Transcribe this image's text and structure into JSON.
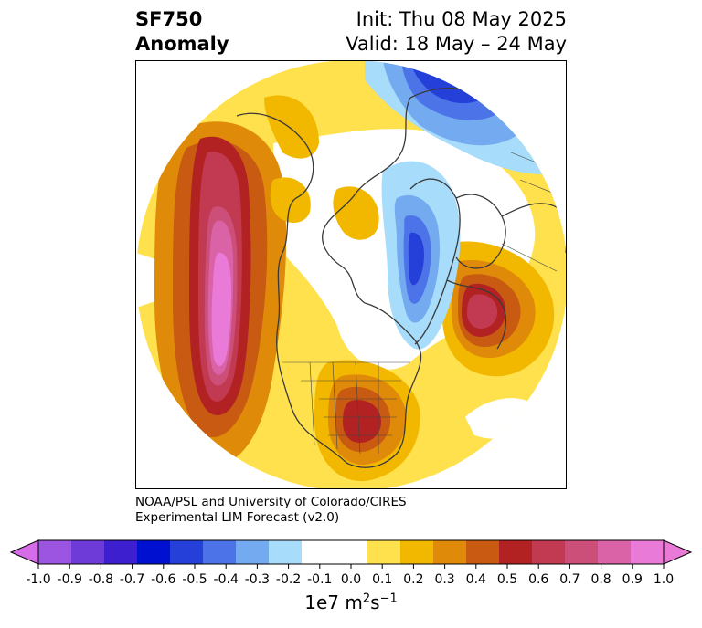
{
  "header": {
    "title_line1": "SF750",
    "title_line2": "Anomaly",
    "init_text": "Init: Thu 08 May 2025",
    "valid_text": "Valid: 18 May – 24 May"
  },
  "credit": {
    "line1": "NOAA/PSL and University of Colorado/CIRES",
    "line2": "Experimental LIM Forecast (v2.0)"
  },
  "colorbar": {
    "ticks": [
      "-1.0",
      "-0.9",
      "-0.8",
      "-0.7",
      "-0.6",
      "-0.5",
      "-0.4",
      "-0.3",
      "-0.2",
      "-0.1",
      "0.0",
      "0.1",
      "0.2",
      "0.3",
      "0.4",
      "0.5",
      "0.6",
      "0.7",
      "0.8",
      "0.9",
      "1.0"
    ],
    "colors": [
      "#9b55e0",
      "#6f3bd8",
      "#3d1fd0",
      "#0010d0",
      "#2540d8",
      "#4c73e8",
      "#73aaf0",
      "#a8dcfb",
      "#ffffff",
      "#ffffff",
      "#ffe14d",
      "#f2b800",
      "#e08a0a",
      "#c85a12",
      "#b22222",
      "#c23a52",
      "#cc4f7a",
      "#da63a8",
      "#e97ad8"
    ],
    "low_extend_color": "#d76ce8",
    "high_extend_color": "#e97ad8",
    "units_main": "1e7 m",
    "units_sup1": "2",
    "units_s": "s",
    "units_sup2": "−1"
  }
}
